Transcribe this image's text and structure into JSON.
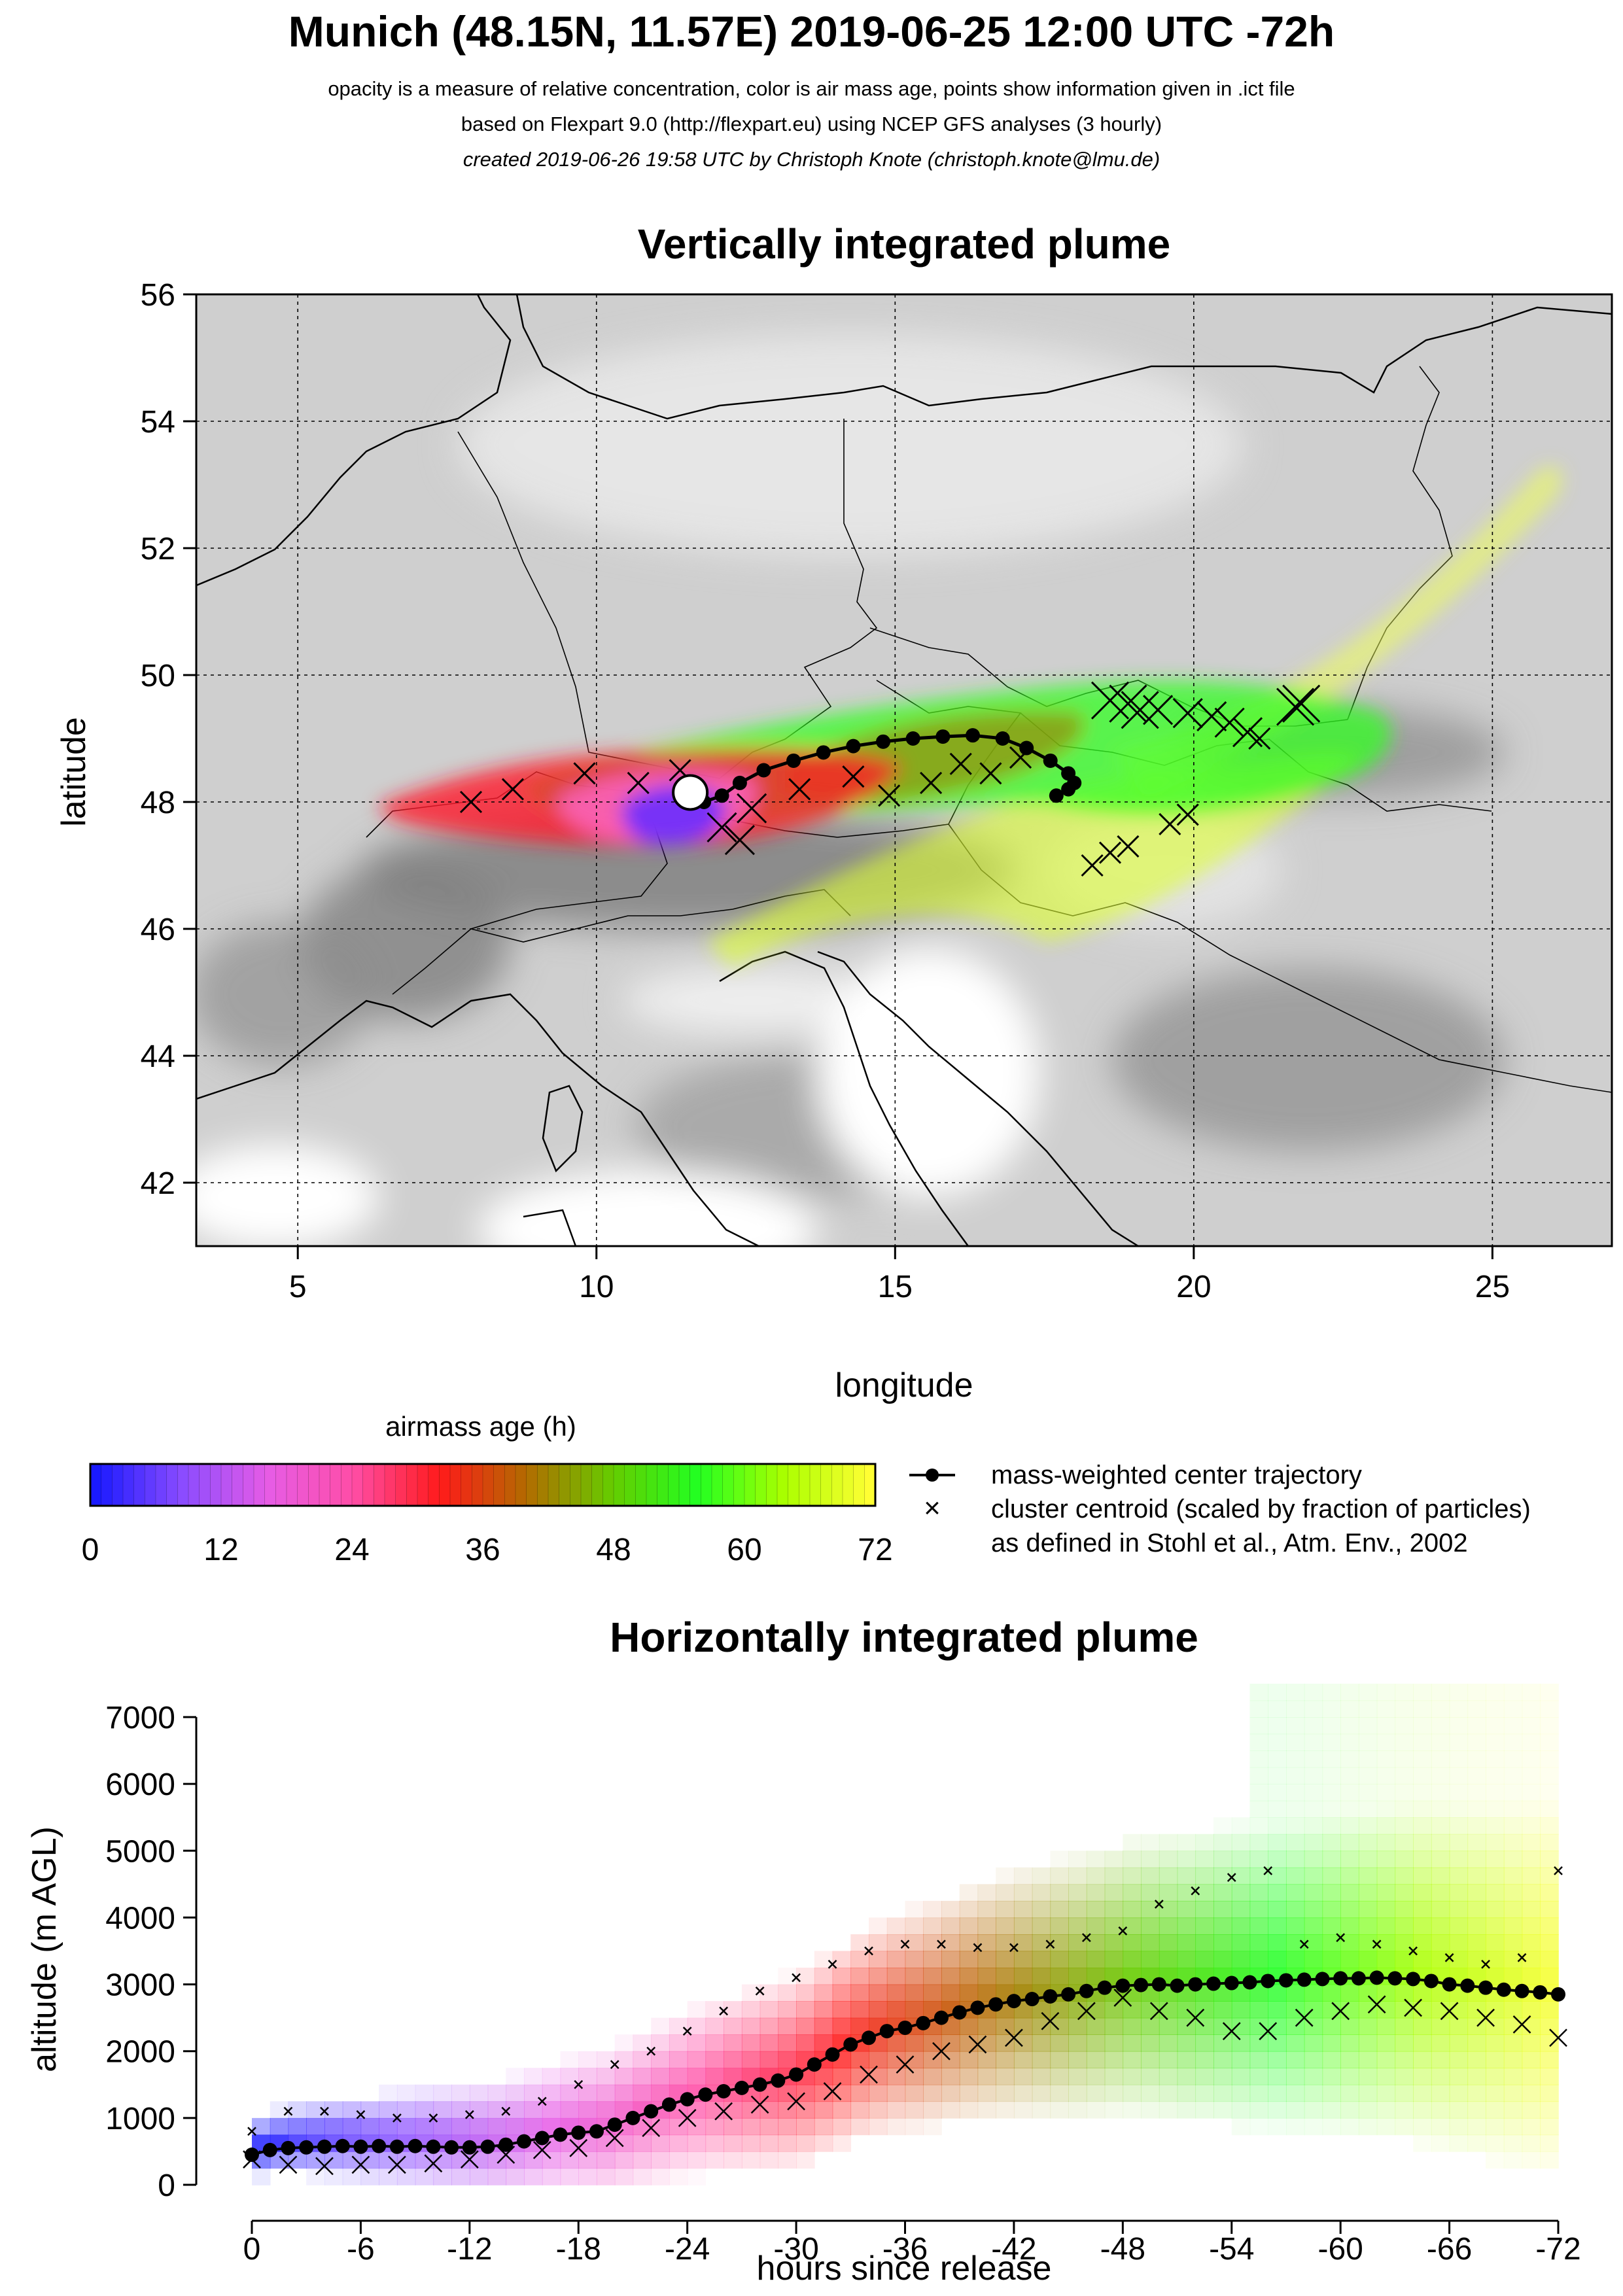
{
  "header": {
    "title": "Munich (48.15N, 11.57E) 2019-06-25 12:00 UTC -72h",
    "line1": "opacity is a measure of relative concentration, color is air mass age, points show information given in .ict file",
    "line2": "based on Flexpart 9.0 (http://flexpart.eu) using NCEP GFS analyses (3 hourly)",
    "line3": "created 2019-06-26 19:58 UTC by Christoph Knote (christoph.knote@lmu.de)"
  },
  "colors": {
    "age_ramp": [
      "#1a1aff",
      "#8a4cff",
      "#e65ce6",
      "#ff4da6",
      "#ff1a1a",
      "#b36b00",
      "#66cc00",
      "#22ff22",
      "#aaff00",
      "#ffff33"
    ],
    "terrain_dark": "#8c8c8c",
    "terrain_light": "#e6e6e6",
    "marker": "#000000"
  },
  "legend": {
    "colorbar_title": "airmass age (h)",
    "colorbar_ticks": [
      "0",
      "12",
      "24",
      "36",
      "48",
      "60",
      "72"
    ],
    "entries": [
      {
        "symbol": "line-dot",
        "label": "mass-weighted center trajectory"
      },
      {
        "symbol": "cross",
        "label": "cluster centroid (scaled by fraction of particles)"
      },
      {
        "symbol": "none",
        "label": "as defined in Stohl et al., Atm. Env., 2002"
      }
    ]
  },
  "chart_data": [
    {
      "type": "map",
      "title": "Vertically integrated plume",
      "xlabel": "longitude",
      "ylabel": "latitude",
      "xlim": [
        3.3,
        27.0
      ],
      "ylim": [
        41.0,
        56.0
      ],
      "xticks": [
        5,
        10,
        15,
        20,
        25
      ],
      "yticks": [
        42,
        44,
        46,
        48,
        50,
        52,
        54,
        56
      ],
      "grid": true,
      "release_point": {
        "lon": 11.57,
        "lat": 48.15
      },
      "center_trajectory": {
        "lon": [
          11.57,
          11.8,
          12.1,
          12.4,
          12.8,
          13.3,
          13.8,
          14.3,
          14.8,
          15.3,
          15.8,
          16.3,
          16.8,
          17.2,
          17.6,
          17.9,
          18.0,
          17.9,
          17.7
        ],
        "lat": [
          48.15,
          48.0,
          48.1,
          48.3,
          48.5,
          48.65,
          48.78,
          48.88,
          48.95,
          49.0,
          49.03,
          49.05,
          49.0,
          48.85,
          48.65,
          48.45,
          48.3,
          48.2,
          48.1
        ]
      },
      "cluster_centroids": {
        "lon": [
          18.6,
          18.9,
          19.1,
          19.4,
          19.9,
          20.3,
          20.6,
          20.9,
          21.1,
          18.3,
          18.6,
          18.9,
          19.6,
          19.9,
          21.7,
          21.8,
          14.3,
          13.4,
          12.6,
          12.1,
          11.4,
          10.7,
          9.8,
          8.6,
          7.9,
          12.4,
          16.1,
          16.6,
          17.1,
          15.6,
          14.9
        ],
        "lat": [
          49.6,
          49.55,
          49.45,
          49.45,
          49.4,
          49.35,
          49.25,
          49.1,
          49.0,
          47.0,
          47.2,
          47.3,
          47.65,
          47.8,
          49.5,
          49.55,
          48.4,
          48.2,
          47.9,
          47.6,
          48.5,
          48.3,
          48.45,
          48.2,
          48.0,
          47.4,
          48.6,
          48.45,
          48.7,
          48.3,
          48.1
        ],
        "size": [
          3,
          3,
          3,
          2,
          2,
          2,
          2,
          2,
          1,
          1,
          1,
          1,
          1,
          1,
          3,
          3,
          1,
          1,
          2,
          2,
          1,
          1,
          1,
          1,
          1,
          2,
          1,
          1,
          1,
          1,
          1
        ]
      }
    },
    {
      "type": "heatmap",
      "title": "Horizontally integrated plume",
      "xlabel": "hours since release",
      "ylabel": "altitude (m AGL)",
      "xlim": [
        0,
        -72
      ],
      "ylim": [
        0,
        7000
      ],
      "xticks": [
        "0",
        "-6",
        "-12",
        "-18",
        "-24",
        "-30",
        "-36",
        "-42",
        "-48",
        "-54",
        "-60",
        "-66",
        "-72"
      ],
      "yticks": [
        "0",
        "1000",
        "2000",
        "3000",
        "4000",
        "5000",
        "6000",
        "7000"
      ],
      "center_trajectory": {
        "hours": [
          0,
          -1,
          -2,
          -3,
          -4,
          -5,
          -6,
          -7,
          -8,
          -9,
          -10,
          -11,
          -12,
          -13,
          -14,
          -15,
          -16,
          -17,
          -18,
          -19,
          -20,
          -21,
          -22,
          -23,
          -24,
          -25,
          -26,
          -27,
          -28,
          -29,
          -30,
          -31,
          -32,
          -33,
          -34,
          -35,
          -36,
          -37,
          -38,
          -39,
          -40,
          -41,
          -42,
          -43,
          -44,
          -45,
          -46,
          -47,
          -48,
          -49,
          -50,
          -51,
          -52,
          -53,
          -54,
          -55,
          -56,
          -57,
          -58,
          -59,
          -60,
          -61,
          -62,
          -63,
          -64,
          -65,
          -66,
          -67,
          -68,
          -69,
          -70,
          -71,
          -72
        ],
        "altitude": [
          450,
          520,
          550,
          560,
          570,
          580,
          570,
          580,
          570,
          580,
          570,
          560,
          560,
          570,
          600,
          650,
          700,
          750,
          780,
          800,
          900,
          1000,
          1100,
          1200,
          1280,
          1350,
          1400,
          1450,
          1500,
          1560,
          1650,
          1800,
          1950,
          2100,
          2200,
          2300,
          2350,
          2420,
          2500,
          2580,
          2650,
          2700,
          2750,
          2780,
          2820,
          2850,
          2900,
          2950,
          2980,
          2990,
          3000,
          2980,
          3000,
          3010,
          3020,
          3030,
          3050,
          3060,
          3070,
          3080,
          3090,
          3090,
          3100,
          3090,
          3080,
          3050,
          3000,
          2980,
          2950,
          2920,
          2900,
          2880,
          2850
        ]
      },
      "clusters_low": {
        "hours": [
          0,
          -2,
          -4,
          -6,
          -8,
          -10,
          -12,
          -14,
          -16,
          -18,
          -20,
          -22,
          -24,
          -26,
          -28,
          -30,
          -32,
          -34,
          -36,
          -38,
          -40,
          -42,
          -44,
          -46,
          -48,
          -50,
          -52,
          -54,
          -56,
          -58,
          -60,
          -62,
          -64,
          -66,
          -68,
          -70,
          -72
        ],
        "altitude": [
          380,
          300,
          280,
          300,
          300,
          320,
          380,
          450,
          520,
          550,
          700,
          850,
          1000,
          1100,
          1200,
          1250,
          1400,
          1650,
          1800,
          2000,
          2100,
          2200,
          2450,
          2600,
          2800,
          2600,
          2500,
          2300,
          2300,
          2500,
          2600,
          2700,
          2650,
          2600,
          2500,
          2400,
          2200
        ]
      },
      "clusters_high": {
        "hours": [
          0,
          -2,
          -4,
          -6,
          -8,
          -10,
          -12,
          -14,
          -16,
          -18,
          -20,
          -22,
          -24,
          -26,
          -28,
          -30,
          -32,
          -34,
          -36,
          -38,
          -40,
          -42,
          -44,
          -46,
          -48,
          -50,
          -52,
          -54,
          -56,
          -58,
          -60,
          -62,
          -64,
          -66,
          -68,
          -70,
          -72
        ],
        "altitude": [
          800,
          1100,
          1100,
          1050,
          1000,
          1000,
          1050,
          1100,
          1250,
          1500,
          1800,
          2000,
          2300,
          2600,
          2900,
          3100,
          3300,
          3500,
          3600,
          3600,
          3550,
          3550,
          3600,
          3700,
          3800,
          4200,
          4400,
          4600,
          4700,
          3600,
          3700,
          3600,
          3500,
          3400,
          3300,
          3400,
          4700
        ]
      }
    }
  ]
}
